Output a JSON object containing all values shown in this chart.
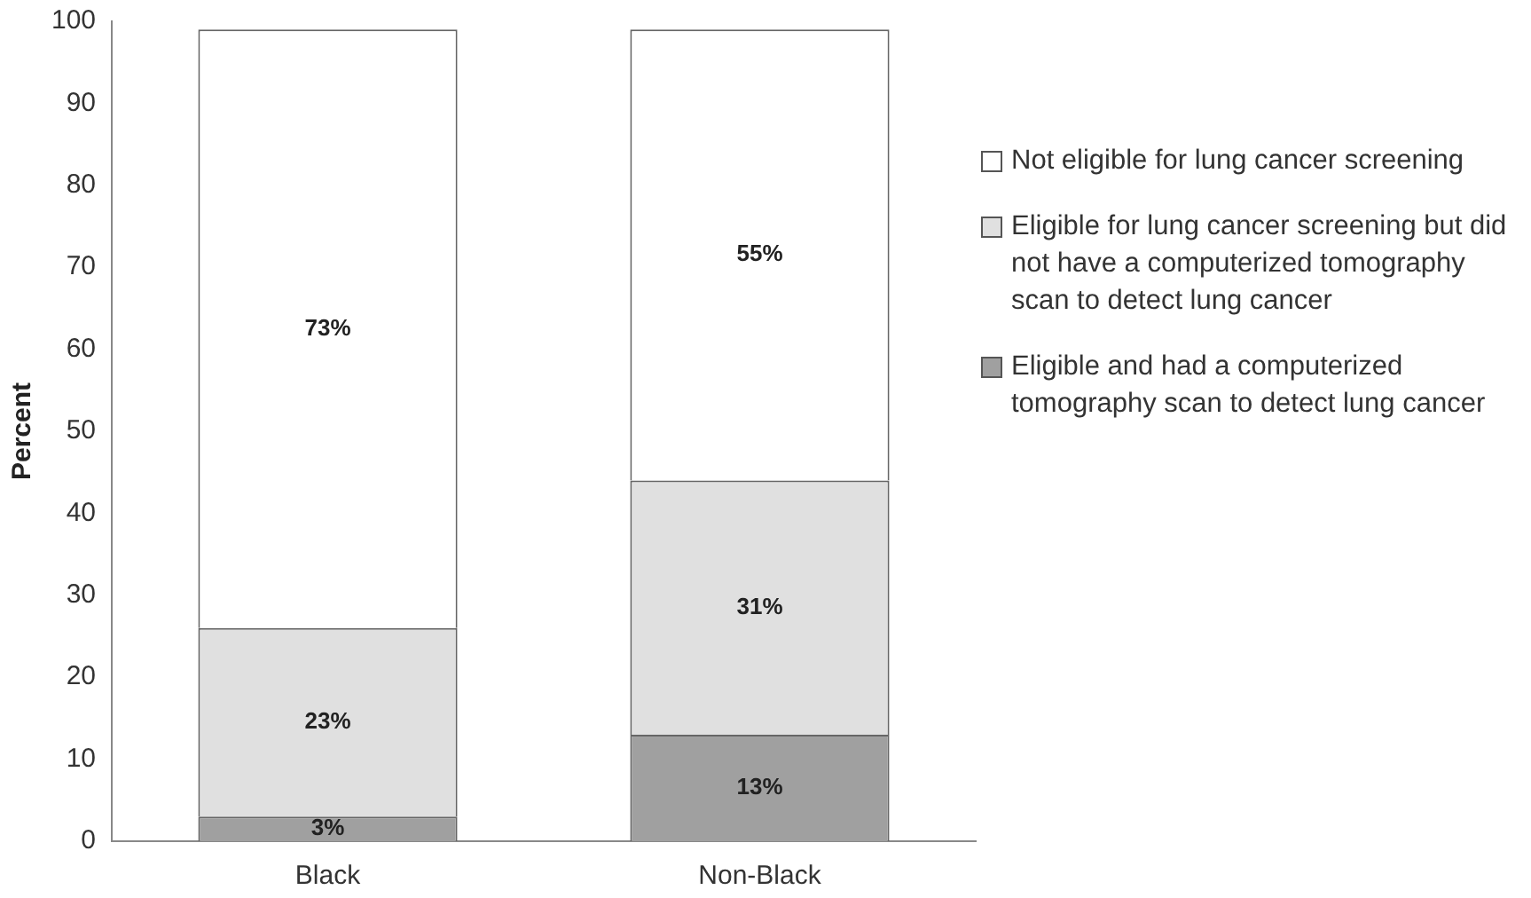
{
  "chart_data": {
    "type": "bar",
    "stacked": true,
    "ylabel": "Percent",
    "categories": [
      "Black",
      "Non-Black"
    ],
    "series": [
      {
        "name": "Eligible and had a computerized tomography scan to detect lung cancer",
        "color": "#a0a0a0",
        "values": [
          3,
          13
        ],
        "value_labels": [
          "3%",
          "13%"
        ]
      },
      {
        "name": "Eligible for lung cancer screening but did not have a computerized tomography scan to detect lung cancer",
        "color": "#e0e0e0",
        "values": [
          23,
          31
        ],
        "value_labels": [
          "23%",
          "31%"
        ]
      },
      {
        "name": "Not eligible for lung cancer screening",
        "color": "#ffffff",
        "values": [
          73,
          55
        ],
        "value_labels": [
          "73%",
          "55%"
        ]
      }
    ],
    "ylim": [
      0,
      100
    ],
    "yticks": [
      0,
      10,
      20,
      30,
      40,
      50,
      60,
      70,
      80,
      90,
      100
    ],
    "grid": false,
    "legend": "right"
  }
}
